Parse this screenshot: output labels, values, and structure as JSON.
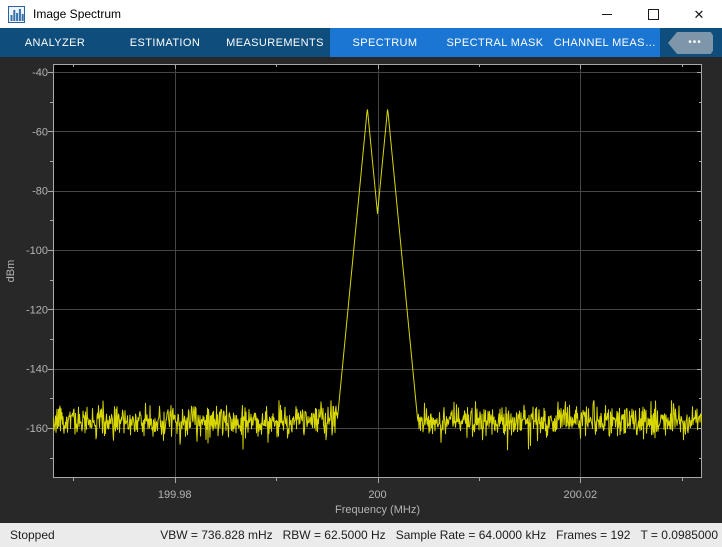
{
  "window": {
    "title": "Image Spectrum",
    "icons": {
      "app": "spectrum-bars-icon",
      "minimize": "minimize-icon",
      "maximize": "maximize-icon",
      "close": "close-icon",
      "overflow": "overflow-ellipsis-icon"
    }
  },
  "toolstrip": {
    "tabs": [
      {
        "label": "ANALYZER",
        "group": "main"
      },
      {
        "label": "ESTIMATION",
        "group": "main"
      },
      {
        "label": "MEASUREMENTS",
        "group": "main"
      },
      {
        "label": "SPECTRUM",
        "group": "highlighted"
      },
      {
        "label": "SPECTRAL MASK",
        "group": "highlighted"
      },
      {
        "label": "CHANNEL MEAS…",
        "group": "highlighted"
      }
    ],
    "overflow_label": "•••",
    "colors": {
      "bar": "#0e4d7c",
      "highlighted_group": "#1b76d3",
      "tab_text": "#ffffff"
    }
  },
  "chart_data": {
    "type": "line",
    "title": "",
    "xlabel": "Frequency (MHz)",
    "ylabel": "dBm",
    "xlim": [
      199.968,
      200.032
    ],
    "ylim": [
      -177,
      -37
    ],
    "xticks": [
      199.98,
      200,
      200.02
    ],
    "xminorticks": [
      199.97,
      199.99,
      200.01,
      200.03
    ],
    "yticks": [
      -40,
      -60,
      -80,
      -100,
      -120,
      -140,
      -160
    ],
    "yminorticks": [
      -50,
      -70,
      -90,
      -110,
      -130,
      -150,
      -170
    ],
    "grid": true,
    "legend": "none",
    "colors": {
      "plot_background": "#000000",
      "figure_background": "#282828",
      "grid": "#454545",
      "axis": "#a8a8a8",
      "tick_label": "#b4b4b4",
      "trace": "#d8d800"
    },
    "series": [
      {
        "name": "spectrum-trace",
        "noise_floor_dbm": -157.5,
        "noise_std_db": 2.6,
        "peaks": [
          {
            "freq_mhz": 199.999,
            "power_dbm": -52.2
          },
          {
            "freq_mhz": 200.001,
            "power_dbm": -52.2
          }
        ]
      }
    ]
  },
  "status_bar": {
    "state": "Stopped",
    "segments": [
      "VBW = 736.828 mHz",
      "RBW = 62.5000 Hz",
      "Sample Rate = 64.0000 kHz",
      "Frames = 192",
      "T = 0.0985000"
    ]
  }
}
